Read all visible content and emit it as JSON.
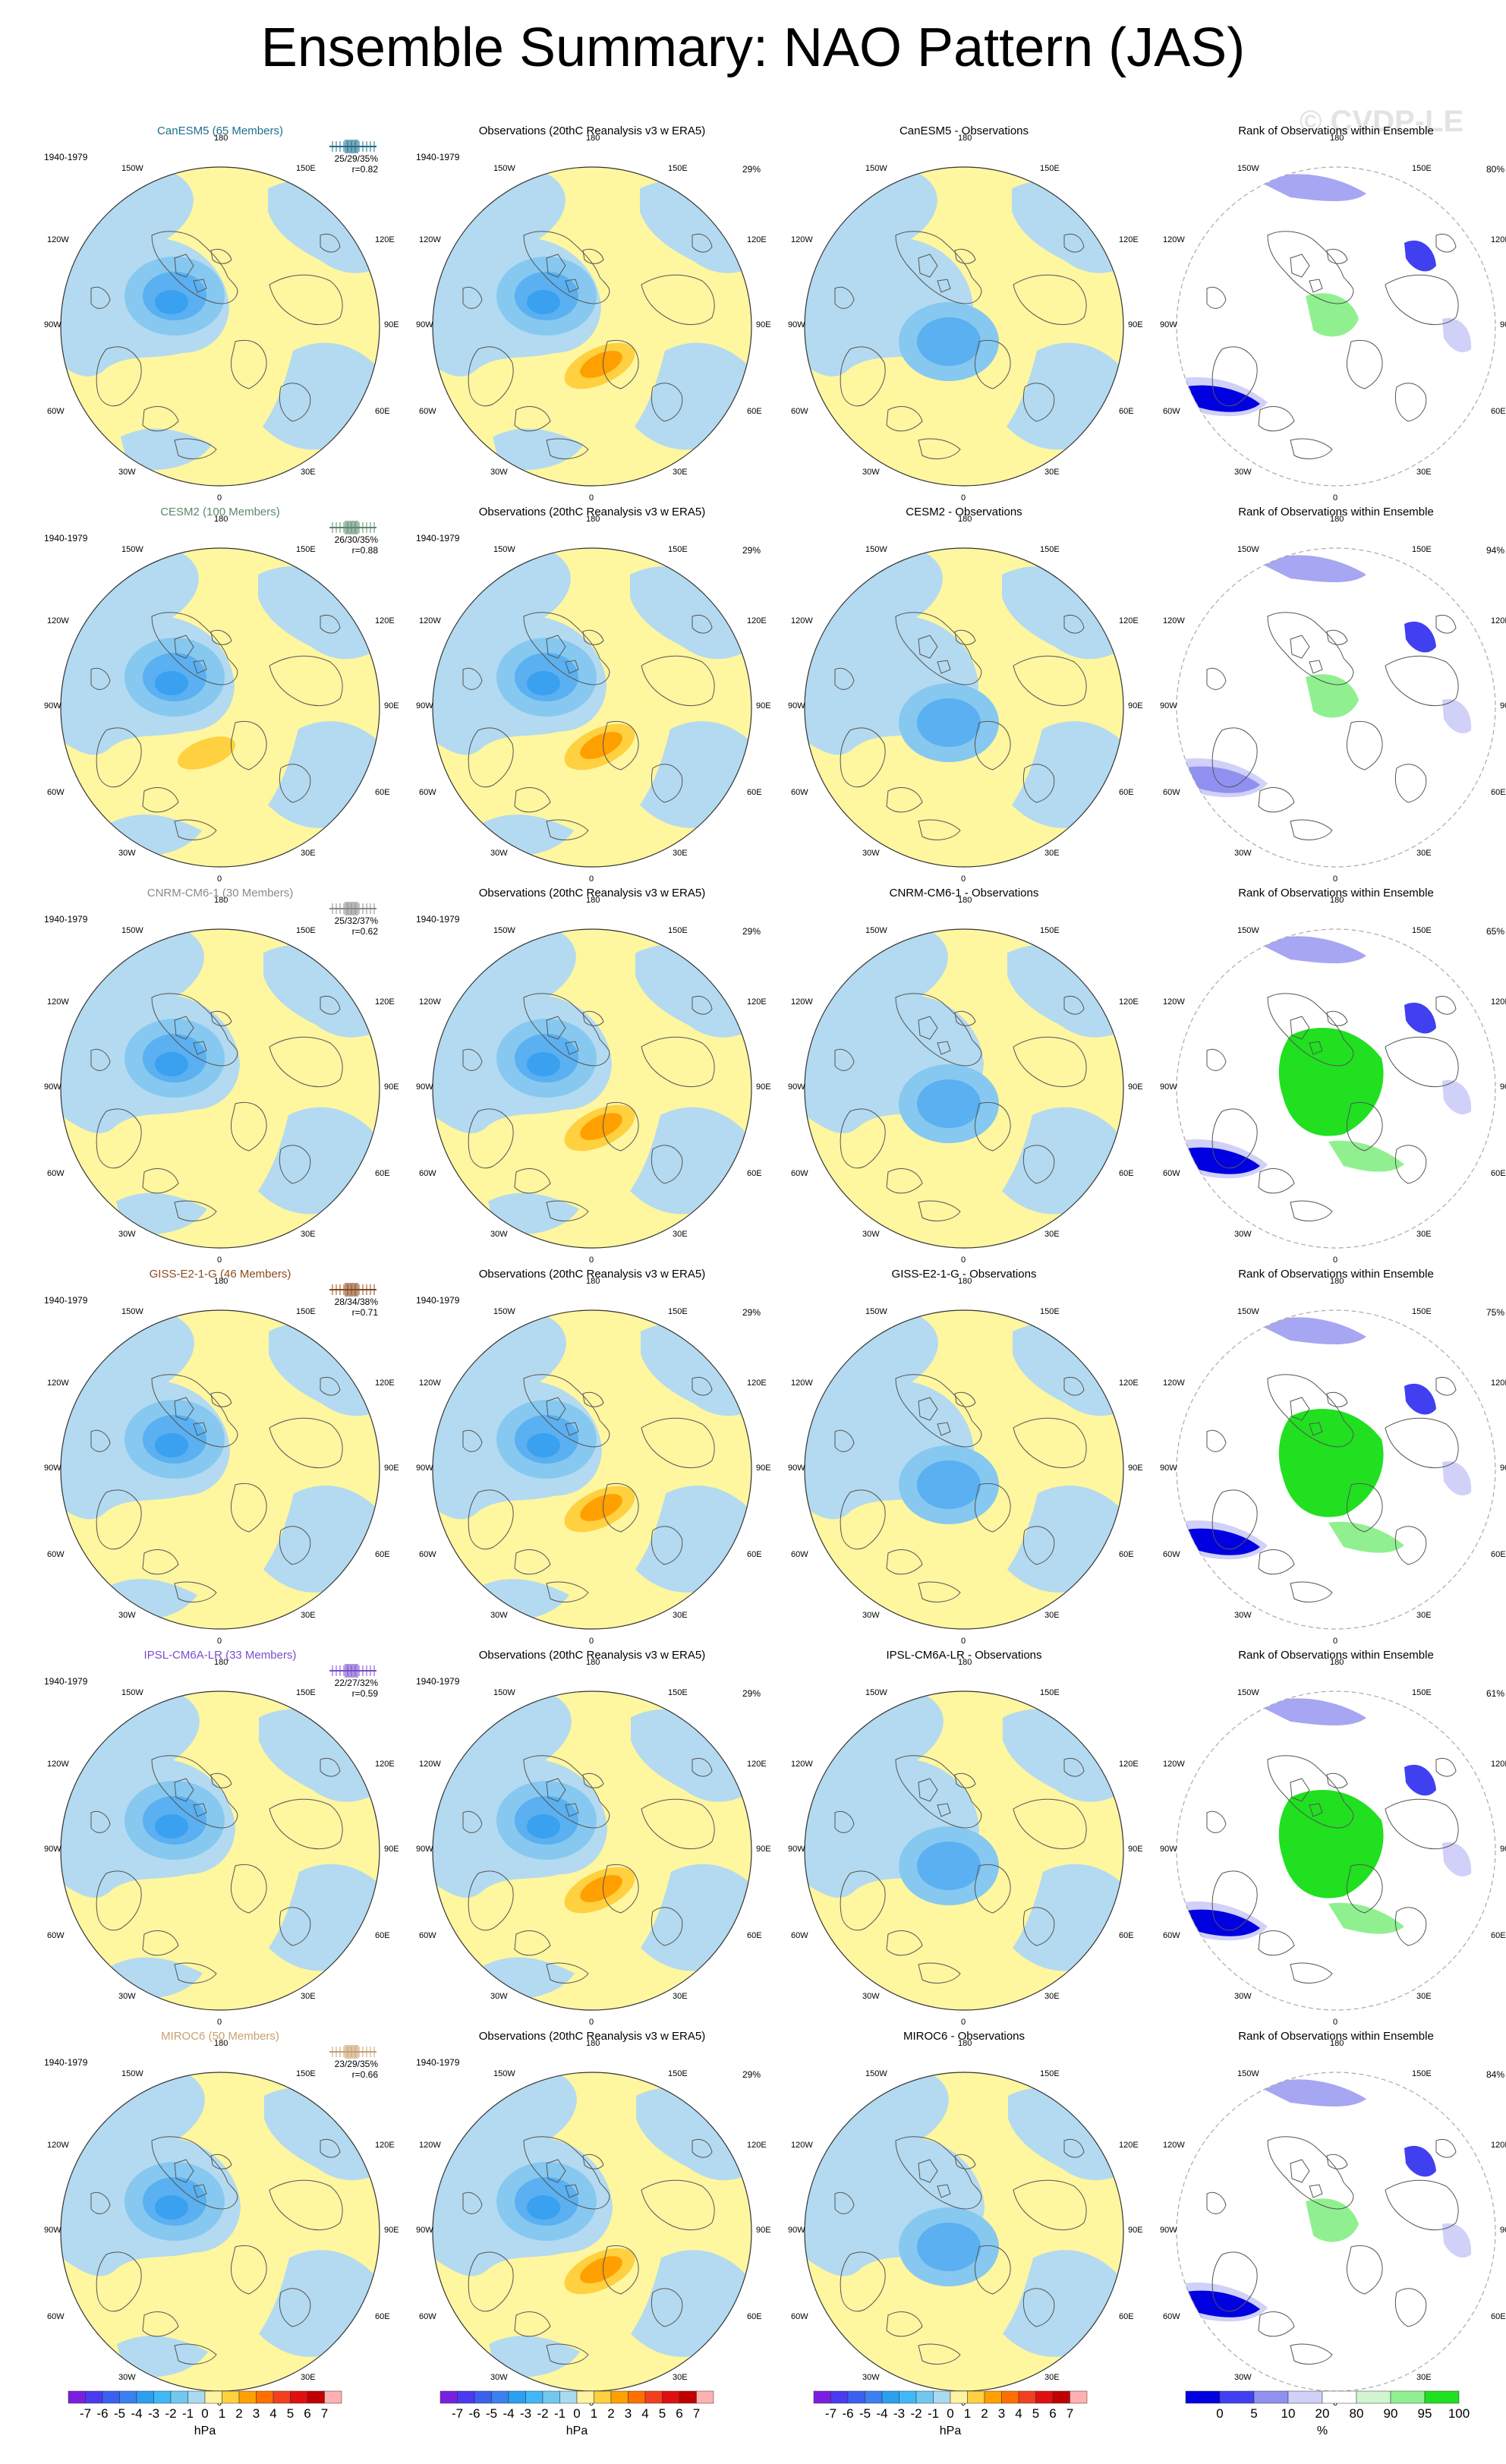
{
  "title": "Ensemble Summary: NAO Pattern (JAS)",
  "watermark": "© CVDP-LE",
  "period": "1940-1979",
  "lon_labels": {
    "top": "180",
    "bottom": "0",
    "tl": "150W",
    "tr": "150E",
    "l1": "120W",
    "r1": "120E",
    "l2": "90W",
    "r2": "90E",
    "l3": "60W",
    "r3": "60E",
    "bl": "30W",
    "br": "30E"
  },
  "obs_title": "Observations (20thC Reanalysis v3 w ERA5)",
  "obs_pct": "29%",
  "rank_title": "Rank of Observations within Ensemble",
  "rows": [
    {
      "model_title": "CanESM5 (65 Members)",
      "title_color": "#1e6e8c",
      "stats": "25/29/35%",
      "r": "r=0.82",
      "diff_title": "CanESM5 - Observations",
      "rank_pct": "80%"
    },
    {
      "model_title": "CESM2 (100 Members)",
      "title_color": "#5a8a6a",
      "stats": "26/30/35%",
      "r": "r=0.88",
      "diff_title": "CESM2 - Observations",
      "rank_pct": "94%"
    },
    {
      "model_title": "CNRM-CM6-1 (30 Members)",
      "title_color": "#8a8a8a",
      "stats": "25/32/37%",
      "r": "r=0.62",
      "diff_title": "CNRM-CM6-1 - Observations",
      "rank_pct": "65%"
    },
    {
      "model_title": "GISS-E2-1-G (46 Members)",
      "title_color": "#8b4a1e",
      "stats": "28/34/38%",
      "r": "r=0.71",
      "diff_title": "GISS-E2-1-G - Observations",
      "rank_pct": "75%"
    },
    {
      "model_title": "IPSL-CM6A-LR (33 Members)",
      "title_color": "#7a4ccc",
      "stats": "22/27/32%",
      "r": "r=0.59",
      "diff_title": "IPSL-CM6A-LR - Observations",
      "rank_pct": "61%"
    },
    {
      "model_title": "MIROC6 (50 Members)",
      "title_color": "#c8a070",
      "stats": "23/29/35%",
      "r": "r=0.66",
      "diff_title": "MIROC6 - Observations",
      "rank_pct": "84%"
    }
  ],
  "colorbar_hpa": {
    "labels": [
      "-7",
      "-6",
      "-5",
      "-4",
      "-3",
      "-2",
      "-1",
      "0",
      "1",
      "2",
      "3",
      "4",
      "5",
      "6",
      "7"
    ],
    "unit": "hPa",
    "colors": [
      "#7a1fe0",
      "#4a3af0",
      "#3a60f0",
      "#3a80f0",
      "#2aa0f0",
      "#40b8f8",
      "#70c8f0",
      "#a8daf0",
      "#fff2a0",
      "#ffd040",
      "#ffa000",
      "#ff7000",
      "#f04020",
      "#e01010",
      "#c00000",
      "#ffb0b0"
    ]
  },
  "colorbar_rank": {
    "labels": [
      "0",
      "5",
      "10",
      "20",
      "80",
      "90",
      "95",
      "100"
    ],
    "unit": "%",
    "colors": [
      "#0000e0",
      "#4040f0",
      "#9090f0",
      "#d0d0f8",
      "#ffffff",
      "#d0f5d0",
      "#90f090",
      "#20e020"
    ]
  }
}
